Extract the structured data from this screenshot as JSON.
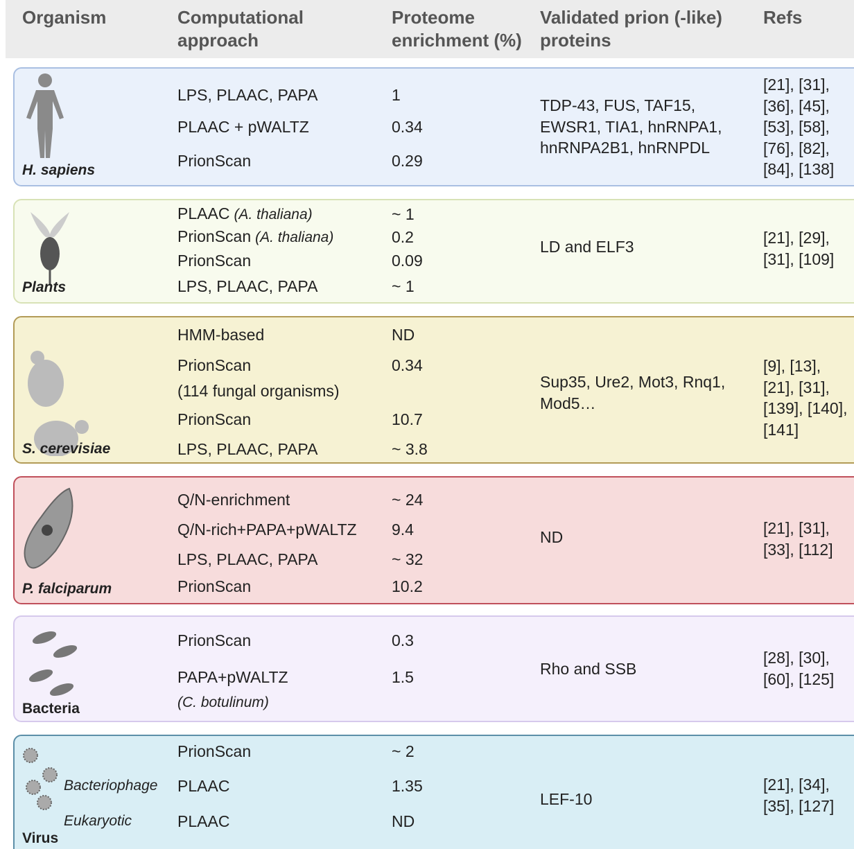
{
  "header": {
    "columns": [
      "Organism",
      "Computational approach",
      "Proteome enrichment (%)",
      "Validated prion (-like) proteins",
      "Refs"
    ]
  },
  "groups": [
    {
      "organism": "H. sapiens",
      "rows": [
        {
          "approach": "LPS, PLAAC, PAPA",
          "enrichment": "1"
        },
        {
          "approach": "PLAAC + pWALTZ",
          "enrichment": "0.34"
        },
        {
          "approach": "PrionScan",
          "enrichment": "0.29"
        }
      ],
      "proteins": "TDP-43, FUS, TAF15, EWSR1, TIA1, hnRNPA1, hnRNPA2B1, hnRNPDL",
      "refs": "[21], [31], [36], [45], [53], [58], [76], [82], [84], [138]"
    },
    {
      "organism": "Plants",
      "rows": [
        {
          "approach": "PLAAC",
          "note": "(A. thaliana)",
          "enrichment": "~ 1"
        },
        {
          "approach": "PrionScan",
          "note": "(A. thaliana)",
          "enrichment": "0.2"
        },
        {
          "approach": "PrionScan",
          "enrichment": "0.09"
        },
        {
          "approach": "LPS, PLAAC, PAPA",
          "enrichment": "~ 1"
        }
      ],
      "proteins": "LD and ELF3",
      "refs": "[21], [29], [31], [109]"
    },
    {
      "organism": "S. cerevisiae",
      "rows": [
        {
          "approach": "HMM-based",
          "enrichment": "ND"
        },
        {
          "approach": "PrionScan",
          "enrichment": "0.34"
        },
        {
          "approach": "(114 fungal organisms)"
        },
        {
          "approach": "PrionScan",
          "enrichment": "10.7"
        },
        {
          "approach": "LPS, PLAAC, PAPA",
          "enrichment": "~ 3.8"
        }
      ],
      "proteins": "Sup35, Ure2, Mot3, Rnq1, Mod5…",
      "refs": "[9], [13], [21], [31], [139], [140], [141]"
    },
    {
      "organism": "P. falciparum",
      "rows": [
        {
          "approach": "Q/N-enrichment",
          "enrichment": "~ 24"
        },
        {
          "approach": "Q/N-rich+PAPA+pWALTZ",
          "enrichment": "9.4"
        },
        {
          "approach": "LPS, PLAAC, PAPA",
          "enrichment": "~ 32"
        },
        {
          "approach": "PrionScan",
          "enrichment": "10.2"
        }
      ],
      "proteins": "ND",
      "refs": "[21], [31], [33], [112]"
    },
    {
      "organism": "Bacteria",
      "rows": [
        {
          "approach": "PrionScan",
          "enrichment": "0.3"
        },
        {
          "approach": "PAPA+pWALTZ",
          "enrichment": "1.5"
        },
        {
          "note": "(C. botulinum)"
        }
      ],
      "proteins": "Rho and SSB",
      "refs": "[28], [30], [60], [125]"
    },
    {
      "organism": "Virus",
      "rows": [
        {
          "approach": "PrionScan",
          "enrichment": "~ 2"
        },
        {
          "host": "Bacteriophage",
          "approach": "PLAAC",
          "enrichment": "1.35"
        },
        {
          "host": "Eukaryotic",
          "approach": "PLAAC",
          "enrichment": "ND"
        }
      ],
      "proteins": "LEF-10",
      "refs": "[21], [34], [35], [127]"
    }
  ]
}
